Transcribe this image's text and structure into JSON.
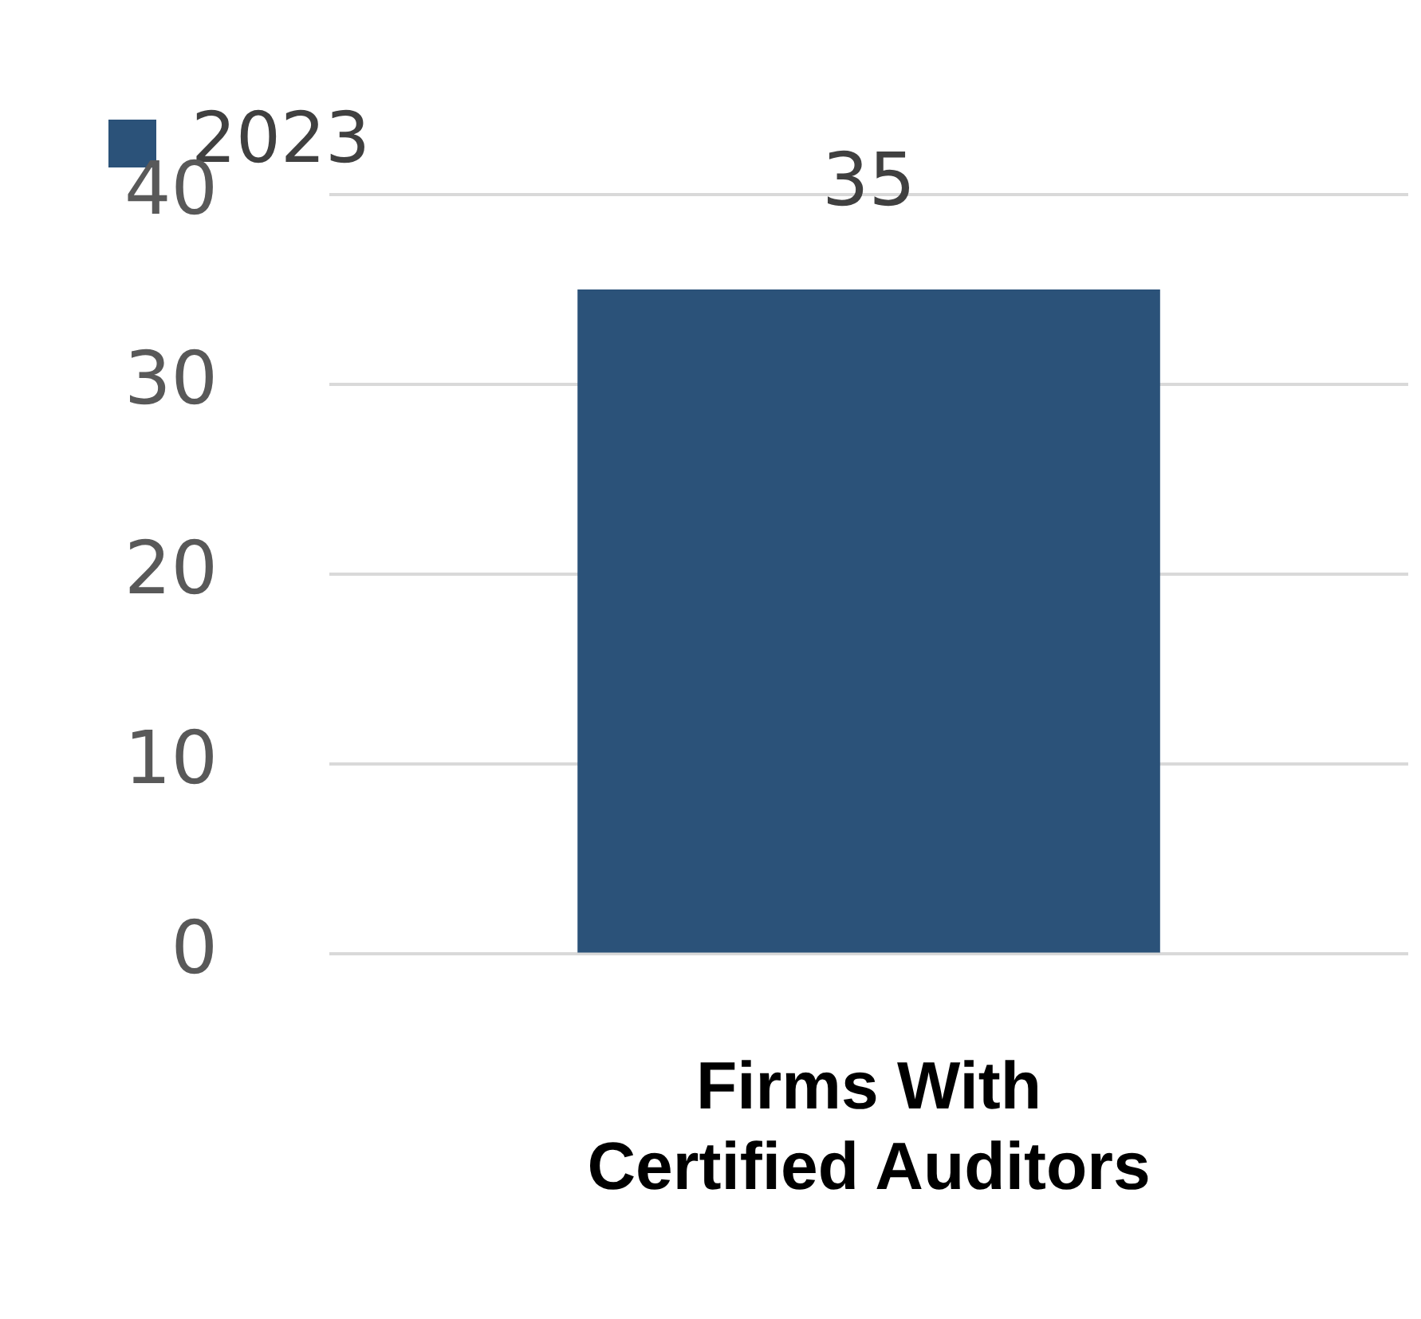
{
  "chart_data": {
    "type": "bar",
    "categories": [
      "Firms With Certified Auditors"
    ],
    "series": [
      {
        "name": "2023",
        "color": "#2b5279",
        "values": [
          35
        ]
      }
    ],
    "ylim": [
      0,
      40
    ],
    "yticks": [
      0,
      10,
      20,
      30,
      40
    ],
    "grid": "y",
    "legend": "top left",
    "data_labels": true
  }
}
